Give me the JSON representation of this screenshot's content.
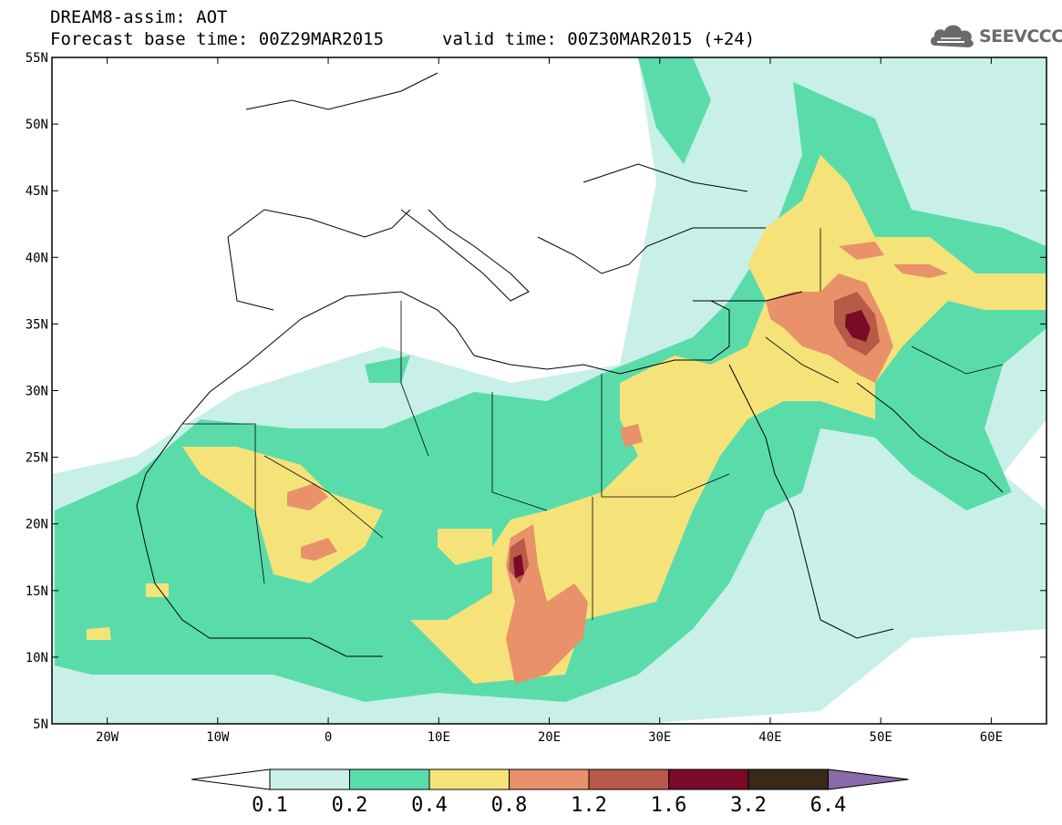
{
  "header": {
    "title": "DREAM8-assim: AOT",
    "base_time": "Forecast base time: 00Z29MAR2015",
    "valid_time": "valid time: 00Z30MAR2015 (+24)"
  },
  "logo": {
    "text": "SEEVCCC",
    "icon": "cloud-icon"
  },
  "map": {
    "lon_range": [
      -25,
      65
    ],
    "lat_range": [
      5,
      55
    ],
    "lat_ticks": [
      "5N",
      "10N",
      "15N",
      "20N",
      "25N",
      "30N",
      "35N",
      "40N",
      "45N",
      "50N",
      "55N"
    ],
    "lon_ticks": [
      "20W",
      "10W",
      "0",
      "10E",
      "20E",
      "30E",
      "40E",
      "50E",
      "60E"
    ]
  },
  "colorbar": {
    "labels": [
      "0.1",
      "0.2",
      "0.4",
      "0.8",
      "1.2",
      "1.6",
      "3.2",
      "6.4"
    ],
    "colors": [
      "#c8f0e8",
      "#5adcaa",
      "#f5e37a",
      "#e8916a",
      "#b85a48",
      "#7a0a28",
      "#3a2818",
      "#8a6aa8"
    ]
  }
}
